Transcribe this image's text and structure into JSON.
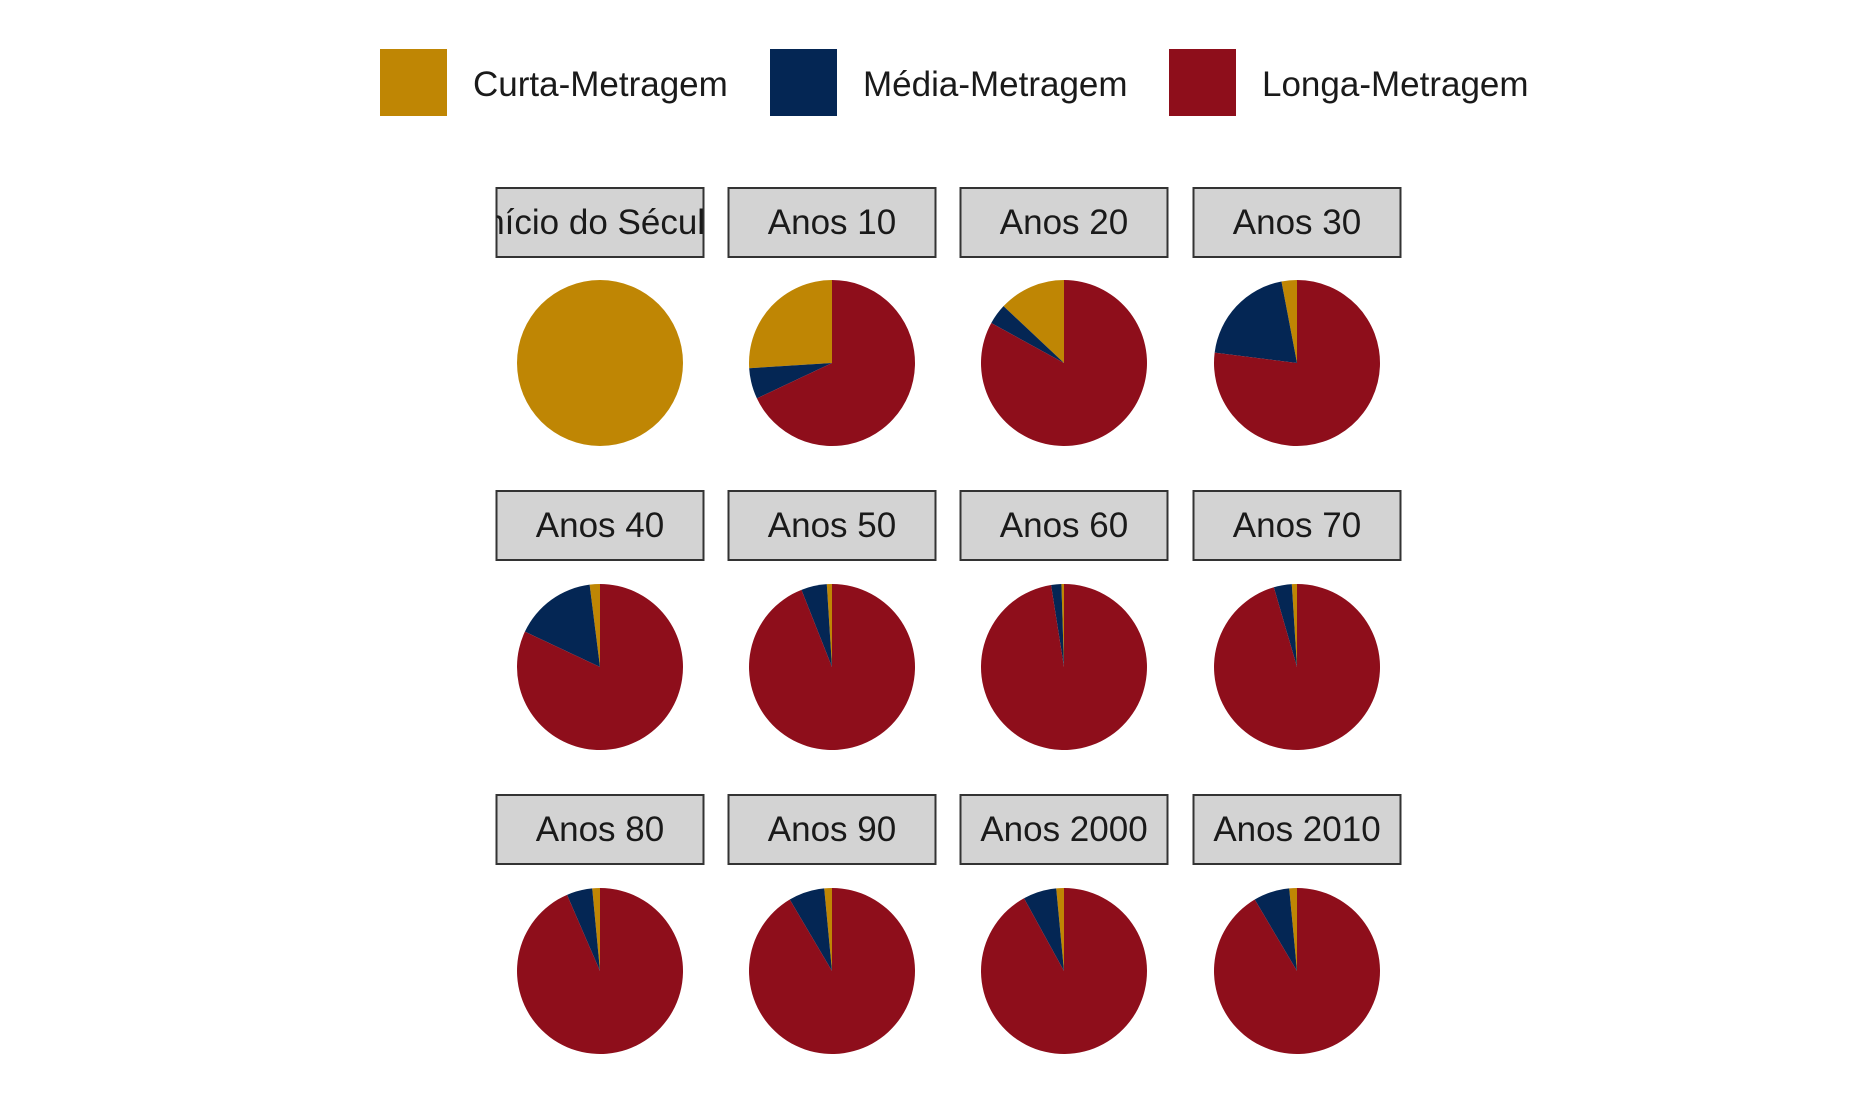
{
  "chart_data": {
    "type": "pie",
    "legend": {
      "position": "top",
      "entries": [
        {
          "key": "curta",
          "label": "Curta-Metragem",
          "color": "#BF8604"
        },
        {
          "key": "media",
          "label": "Média-Metragem",
          "color": "#042654"
        },
        {
          "key": "longa",
          "label": "Longa-Metragem",
          "color": "#8E0E1B"
        }
      ]
    },
    "panels": [
      {
        "title": "Início do Século",
        "values": {
          "curta": 1.0,
          "media": 0.0,
          "longa": 0.0
        }
      },
      {
        "title": "Anos 10",
        "values": {
          "curta": 0.26,
          "media": 0.06,
          "longa": 0.68
        }
      },
      {
        "title": "Anos 20",
        "values": {
          "curta": 0.13,
          "media": 0.04,
          "longa": 0.83
        }
      },
      {
        "title": "Anos 30",
        "values": {
          "curta": 0.03,
          "media": 0.2,
          "longa": 0.77
        }
      },
      {
        "title": "Anos 40",
        "values": {
          "curta": 0.02,
          "media": 0.16,
          "longa": 0.82
        }
      },
      {
        "title": "Anos 50",
        "values": {
          "curta": 0.01,
          "media": 0.05,
          "longa": 0.94
        }
      },
      {
        "title": "Anos 60",
        "values": {
          "curta": 0.005,
          "media": 0.02,
          "longa": 0.975
        }
      },
      {
        "title": "Anos 70",
        "values": {
          "curta": 0.01,
          "media": 0.035,
          "longa": 0.955
        }
      },
      {
        "title": "Anos 80",
        "values": {
          "curta": 0.015,
          "media": 0.05,
          "longa": 0.935
        }
      },
      {
        "title": "Anos 90",
        "values": {
          "curta": 0.015,
          "media": 0.07,
          "longa": 0.915
        }
      },
      {
        "title": "Anos 2000",
        "values": {
          "curta": 0.015,
          "media": 0.065,
          "longa": 0.92
        }
      },
      {
        "title": "Anos 2010",
        "values": {
          "curta": 0.015,
          "media": 0.07,
          "longa": 0.915
        }
      }
    ],
    "grid": false
  }
}
